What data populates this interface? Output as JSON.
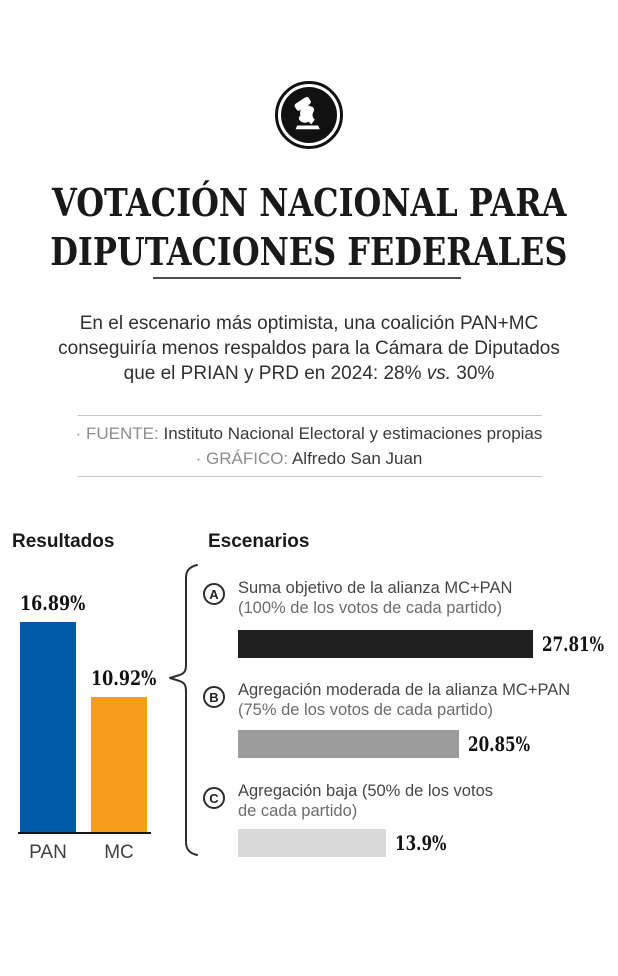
{
  "logo": {
    "icon": "gavel-hand-ballot-icon"
  },
  "header": {
    "title_line1": "VOTACIÓN NACIONAL PARA",
    "title_line2": "DIPUTACIONES FEDERALES"
  },
  "intro": {
    "line1": "En el escenario más optimista, una coalición PAN+MC",
    "line2": "conseguiría menos respaldos para la Cámara de Diputados",
    "line3_pre": "que el PRIAN y PRD en 2024: 28% ",
    "line3_italic": "vs.",
    "line3_post": " 30%"
  },
  "source": {
    "fuente_label": "· FUENTE: ",
    "fuente_value": "Instituto Nacional Electoral y estimaciones propias",
    "grafico_label": "· GRÁFICO: ",
    "grafico_value": "Alfredo San Juan"
  },
  "chart_data": [
    {
      "id": "resultados",
      "type": "bar",
      "orientation": "vertical",
      "title": "Resultados",
      "categories": [
        "PAN",
        "MC"
      ],
      "values": [
        16.89,
        10.92
      ],
      "value_labels": [
        "16.89%",
        "10.92%"
      ],
      "colors": [
        "#0059a9",
        "#f89c1c"
      ],
      "ylim": [
        0,
        17
      ],
      "grid": "off",
      "axis": "baseline-only"
    },
    {
      "id": "escenarios",
      "type": "bar",
      "orientation": "horizontal",
      "title": "Escenarios",
      "xlim": [
        0,
        28
      ],
      "grid": "off",
      "items": [
        {
          "id": "A",
          "label": "Suma objetivo de la alianza MC+PAN",
          "sublabel": "(100% de los votos de cada partido)",
          "value": 27.81,
          "value_label": "27.81%",
          "color": "#1f1f1f"
        },
        {
          "id": "B",
          "label": "Agregación moderada de la alianza MC+PAN",
          "sublabel": "(75% de los votos de cada partido)",
          "value": 20.85,
          "value_label": "20.85%",
          "color": "#9c9c9c"
        },
        {
          "id": "C",
          "label": "Agregación baja (50% de los votos",
          "sublabel": "de cada partido)",
          "value": 13.9,
          "value_label": "13.9%",
          "color": "#dadada"
        }
      ]
    }
  ]
}
